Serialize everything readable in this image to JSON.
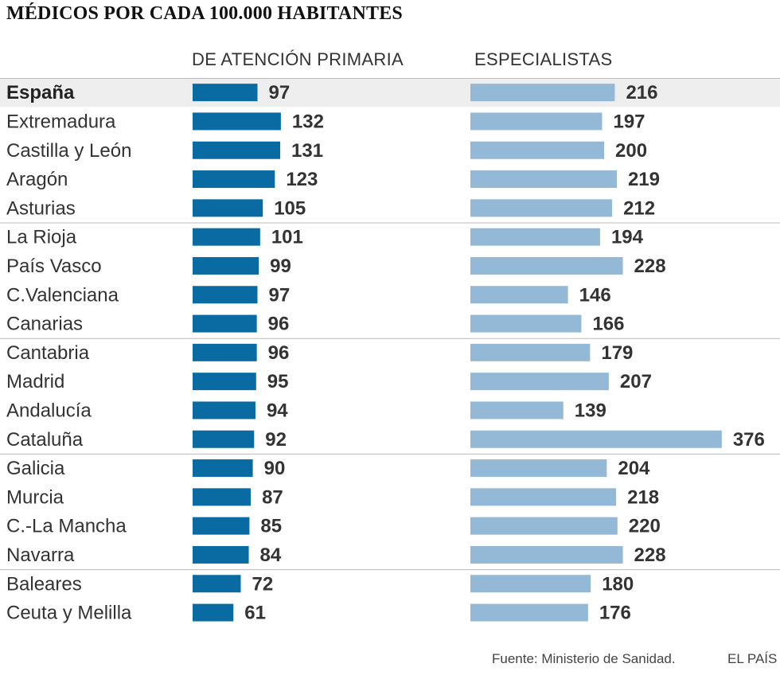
{
  "title": "MÉDICOS POR CADA 100.000 HABITANTES",
  "columns": {
    "primary": "DE ATENCIÓN PRIMARIA",
    "specialists": "ESPECIALISTAS"
  },
  "footer": {
    "source": "Fuente: Ministerio de Sanidad.",
    "brand": "EL PAÍS"
  },
  "colors": {
    "primary_bar": "#0a6ba3",
    "specialist_bar": "#93b9d7",
    "highlight_row": "#eeeeee",
    "divider": "#bbbbbb"
  },
  "chart_data": {
    "type": "bar",
    "title": "MÉDICOS POR CADA 100.000 HABITANTES",
    "orientation": "horizontal",
    "highlight": "España",
    "categories": [
      "España",
      "Extremadura",
      "Castilla y León",
      "Aragón",
      "Asturias",
      "La Rioja",
      "País Vasco",
      "C.Valenciana",
      "Canarias",
      "Cantabria",
      "Madrid",
      "Andalucía",
      "Cataluña",
      "Galicia",
      "Murcia",
      "C.-La Mancha",
      "Navarra",
      "Baleares",
      "Ceuta y Melilla"
    ],
    "series": [
      {
        "name": "DE ATENCIÓN PRIMARIA",
        "values": [
          97,
          132,
          131,
          123,
          105,
          101,
          99,
          97,
          96,
          96,
          95,
          94,
          92,
          90,
          87,
          85,
          84,
          72,
          61
        ]
      },
      {
        "name": "ESPECIALISTAS",
        "values": [
          216,
          197,
          200,
          219,
          212,
          194,
          228,
          146,
          166,
          179,
          207,
          139,
          376,
          204,
          218,
          220,
          228,
          180,
          176
        ]
      }
    ]
  }
}
